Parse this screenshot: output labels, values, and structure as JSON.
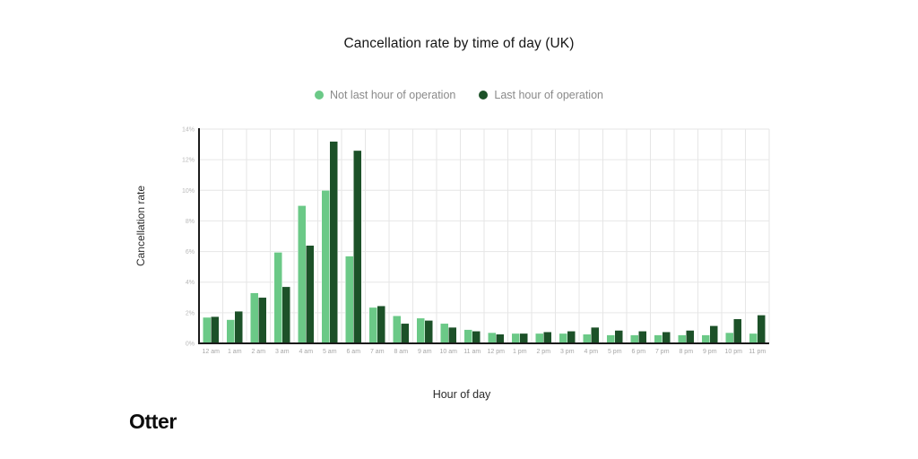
{
  "page": {
    "brand": "Otter"
  },
  "chart_data": {
    "type": "bar",
    "title": "Cancellation rate by time of day (UK)",
    "xlabel": "Hour of day",
    "ylabel": "Cancellation rate",
    "categories": [
      "12 am",
      "1 am",
      "2 am",
      "3 am",
      "4 am",
      "5 am",
      "6 am",
      "7 am",
      "8 am",
      "9 am",
      "10 am",
      "11 am",
      "12 pm",
      "1 pm",
      "2 pm",
      "3 pm",
      "4 pm",
      "5 pm",
      "6 pm",
      "7 pm",
      "8 pm",
      "9 pm",
      "10 pm",
      "11 pm"
    ],
    "series": [
      {
        "name": "Not last hour of operation",
        "color": "#6BC987",
        "values": [
          1.7,
          1.55,
          3.3,
          5.95,
          9.0,
          10.0,
          5.7,
          2.35,
          1.8,
          1.65,
          1.3,
          0.9,
          0.7,
          0.65,
          0.65,
          0.65,
          0.6,
          0.55,
          0.55,
          0.55,
          0.55,
          0.55,
          0.7,
          0.65
        ]
      },
      {
        "name": "Last hour of operation",
        "color": "#1C5128",
        "values": [
          1.75,
          2.1,
          3.0,
          3.7,
          6.4,
          13.2,
          12.6,
          2.45,
          1.3,
          1.5,
          1.05,
          0.8,
          0.6,
          0.65,
          0.75,
          0.8,
          1.05,
          0.85,
          0.8,
          0.75,
          0.85,
          1.15,
          1.6,
          1.85
        ]
      }
    ],
    "ylim": [
      0,
      14
    ],
    "ytick_step": 2,
    "ytick_suffix": "%",
    "grid": true,
    "legend_position": "top",
    "colors": {
      "axis": "#1a1a1a",
      "gridline": "#e6e6e6",
      "y_tick_text": "#b9b9b9",
      "x_tick_text": "#a6a6a6",
      "bar_stroke": "#ffffff"
    }
  }
}
